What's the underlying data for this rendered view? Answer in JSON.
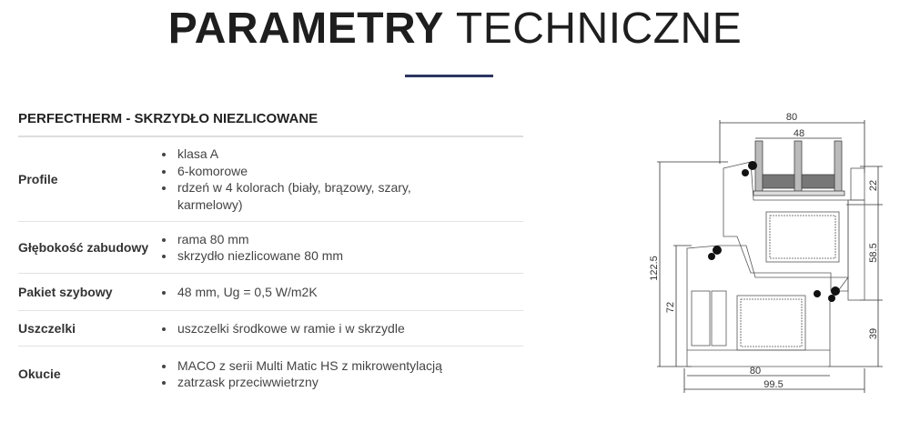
{
  "header": {
    "title_bold": "PARAMETRY",
    "title_light": "TECHNICZNE",
    "accent_color": "#2a3560"
  },
  "table": {
    "title": "PERFECTHERM - SKRZYDŁO NIEZLICOWANE",
    "rows": [
      {
        "label": "Profile",
        "items": [
          "klasa A",
          "6-komorowe",
          "rdzeń w 4 kolorach (biały, brązowy, szary, karmelowy)"
        ]
      },
      {
        "label": "Głębokość zabudowy",
        "items": [
          "rama 80 mm",
          "skrzydło niezlicowane 80 mm"
        ]
      },
      {
        "label": "Pakiet szybowy",
        "items": [
          "48 mm, Ug = 0,5 W/m2K"
        ]
      },
      {
        "label": "Uszczelki",
        "items": [
          "uszczelki środkowe w ramie i w skrzydle"
        ]
      },
      {
        "label": "Okucie",
        "items": [
          "MACO z serii Multi Matic HS z mikrowentylacją",
          "zatrzask przeciwwietrzny"
        ]
      }
    ]
  },
  "diagram": {
    "dims": {
      "top_width": "80",
      "glass": "48",
      "total_height": "122.5",
      "frame_height": "72",
      "right_top": "22",
      "right_mid": "58.5",
      "right_bottom": "39",
      "bottom_frame": "80",
      "bottom_total": "99.5"
    }
  }
}
